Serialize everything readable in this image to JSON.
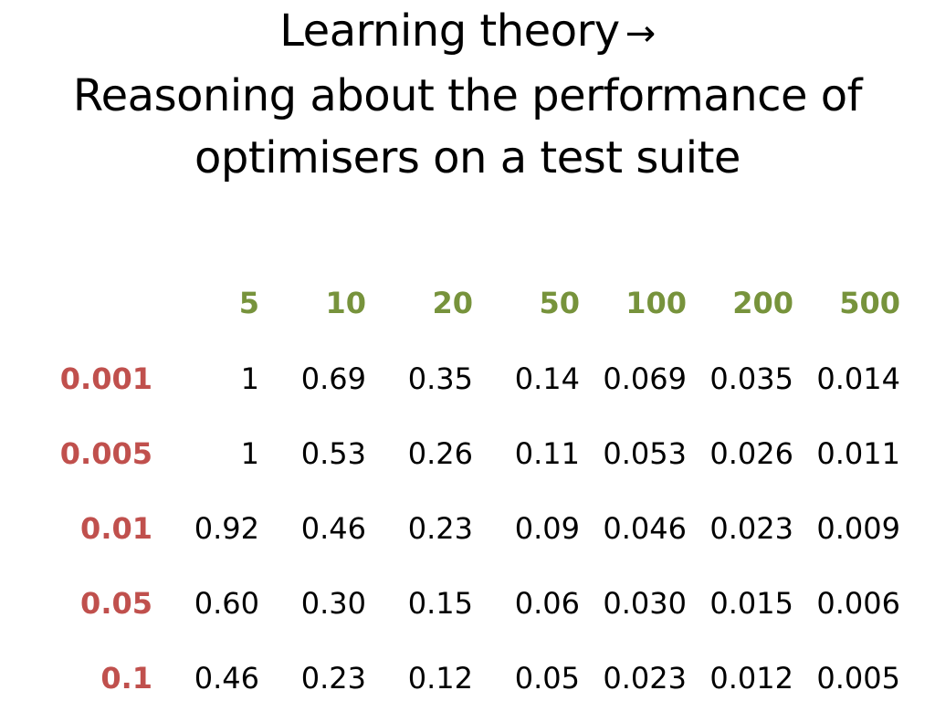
{
  "title": {
    "line1": "Learning theory",
    "arrow": "→",
    "line2": "Reasoning about the performance of",
    "line3": "optimisers on a test suite"
  },
  "colors": {
    "column_header": "#77933c",
    "row_header": "#c0504d",
    "text": "#000000"
  },
  "table": {
    "columns": [
      "5",
      "10",
      "20",
      "50",
      "100",
      "200",
      "500"
    ],
    "rows": [
      {
        "label": "0.001",
        "values": [
          "1",
          "0.69",
          "0.35",
          "0.14",
          "0.069",
          "0.035",
          "0.014"
        ]
      },
      {
        "label": "0.005",
        "values": [
          "1",
          "0.53",
          "0.26",
          "0.11",
          "0.053",
          "0.026",
          "0.011"
        ]
      },
      {
        "label": "0.01",
        "values": [
          "0.92",
          "0.46",
          "0.23",
          "0.09",
          "0.046",
          "0.023",
          "0.009"
        ]
      },
      {
        "label": "0.05",
        "values": [
          "0.60",
          "0.30",
          "0.15",
          "0.06",
          "0.030",
          "0.015",
          "0.006"
        ]
      },
      {
        "label": "0.1",
        "values": [
          "0.46",
          "0.23",
          "0.12",
          "0.05",
          "0.023",
          "0.012",
          "0.005"
        ]
      }
    ]
  }
}
